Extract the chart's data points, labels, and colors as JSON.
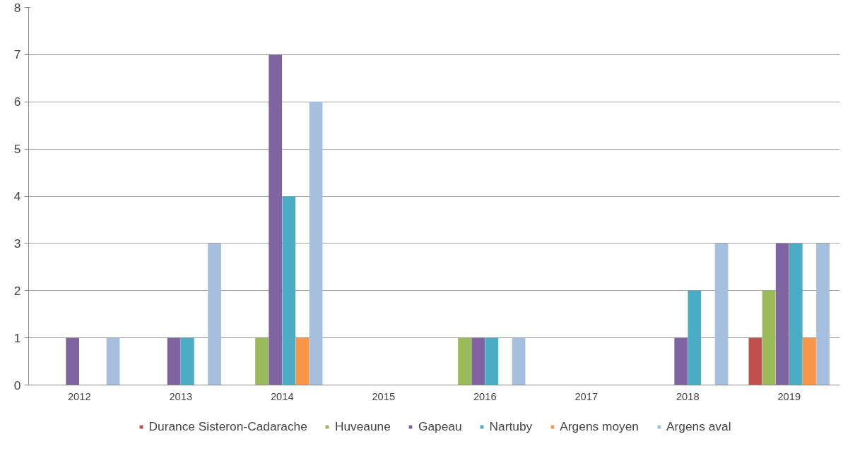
{
  "chart_data": {
    "type": "bar",
    "categories": [
      "2012",
      "2013",
      "2014",
      "2015",
      "2016",
      "2017",
      "2018",
      "2019"
    ],
    "series": [
      {
        "name": "Durance Sisteron-Cadarache",
        "color": "#c0504d",
        "values": [
          0,
          0,
          0,
          0,
          0,
          0,
          0,
          1
        ]
      },
      {
        "name": "Huveaune",
        "color": "#9bbb59",
        "values": [
          0,
          0,
          1,
          0,
          1,
          0,
          0,
          2
        ]
      },
      {
        "name": "Gapeau",
        "color": "#8064a2",
        "values": [
          1,
          1,
          7,
          0,
          1,
          0,
          1,
          3
        ]
      },
      {
        "name": "Nartuby",
        "color": "#4bacc6",
        "values": [
          0,
          1,
          4,
          0,
          1,
          0,
          2,
          3
        ]
      },
      {
        "name": "Argens moyen",
        "color": "#f79646",
        "values": [
          0,
          0,
          1,
          0,
          0,
          0,
          0,
          1
        ]
      },
      {
        "name": "Argens aval",
        "color": "#a7bfde",
        "values": [
          1,
          3,
          6,
          0,
          1,
          0,
          3,
          3
        ]
      }
    ],
    "ylim": [
      0,
      8
    ],
    "yticks": [
      0,
      1,
      2,
      3,
      4,
      5,
      6,
      7,
      8
    ],
    "grid": "y",
    "legend": "bottom"
  }
}
